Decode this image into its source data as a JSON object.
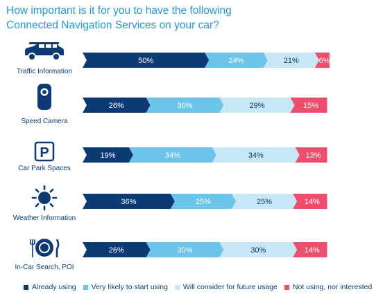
{
  "title": {
    "line1": "How important is it for you to have the following",
    "line2": "Connected Navigation Services on your car?"
  },
  "colors": {
    "already": "#0b3a75",
    "likely": "#6cc4ea",
    "consider": "#c7e6f6",
    "not": "#ec4f6d",
    "text_dark": "#0a3d74",
    "title": "#1e9ad6"
  },
  "legend": [
    {
      "label": "Already using",
      "color": "#0b3a75"
    },
    {
      "label": "Very likely to start using",
      "color": "#6cc4ea"
    },
    {
      "label": "Will consider for future usage",
      "color": "#c7e6f6"
    },
    {
      "label": "Not using, nor interested",
      "color": "#ec4f6d"
    }
  ],
  "chart_data": {
    "type": "bar",
    "orientation": "horizontal",
    "stacked": true,
    "categories": [
      "Traffic Information",
      "Speed Camera",
      "Car Park Spaces",
      "Weather Information",
      "In-Car Search, POI"
    ],
    "icons": [
      "car-icon",
      "speed-camera-icon",
      "parking-icon",
      "sun-icon",
      "plate-cutlery-icon"
    ],
    "series": [
      {
        "name": "Already using",
        "values": [
          50,
          26,
          19,
          36,
          26
        ]
      },
      {
        "name": "Very likely to start using",
        "values": [
          24,
          30,
          34,
          25,
          30
        ]
      },
      {
        "name": "Will consider for future usage",
        "values": [
          21,
          29,
          34,
          25,
          30
        ]
      },
      {
        "name": "Not using, nor interested",
        "values": [
          6,
          15,
          13,
          14,
          14
        ]
      }
    ],
    "value_labels": [
      [
        "50%",
        "24%",
        "21%",
        "6%"
      ],
      [
        "26%",
        "30%",
        "29%",
        "15%"
      ],
      [
        "19%",
        "34%",
        "34%",
        "13%"
      ],
      [
        "36%",
        "25%",
        "25%",
        "14%"
      ],
      [
        "26%",
        "30%",
        "30%",
        "14%"
      ]
    ],
    "title": "How important is it for you to have the following Connected Navigation Services on your car?",
    "xlim": [
      0,
      101
    ],
    "legend_position": "bottom"
  }
}
